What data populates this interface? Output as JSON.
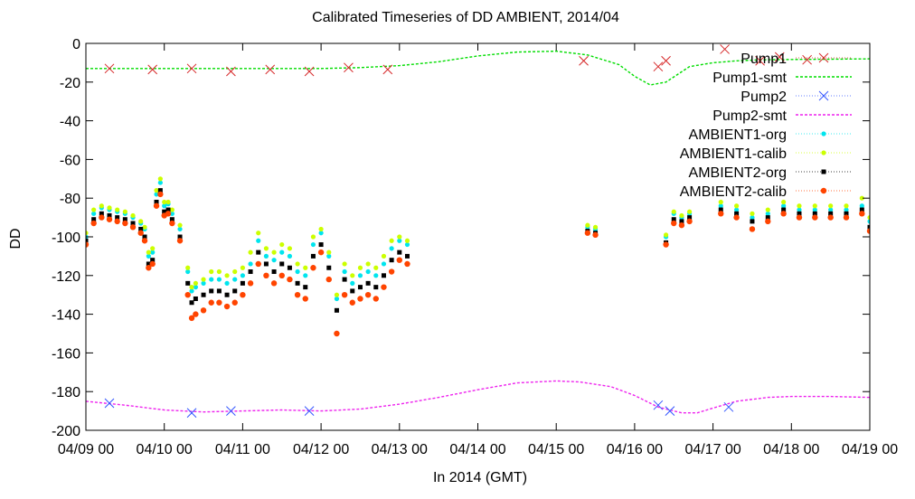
{
  "chart_data": {
    "type": "scatter",
    "title": "Calibrated Timeseries of DD AMBIENT, 2014/04",
    "xlabel": "In 2014 (GMT)",
    "ylabel": "DD",
    "xlim": [
      "2014-04-09 00:00",
      "2014-04-19 00:00"
    ],
    "ylim": [
      -200,
      0
    ],
    "yticks": [
      0,
      -20,
      -40,
      -60,
      -80,
      -100,
      -120,
      -140,
      -160,
      -180,
      -200
    ],
    "xticks": [
      "04/09 00",
      "04/10 00",
      "04/11 00",
      "04/12 00",
      "04/13 00",
      "04/14 00",
      "04/15 00",
      "04/16 00",
      "04/17 00",
      "04/18 00",
      "04/19 00"
    ],
    "legend_position": "top-right",
    "grid": false,
    "series": [
      {
        "name": "Pump1",
        "style": "cross-marker",
        "color": "#d62728",
        "x": [
          0.3,
          0.85,
          1.35,
          1.85,
          2.35,
          2.85,
          3.35,
          3.85,
          6.35,
          7.3,
          7.4,
          8.15,
          8.6,
          8.85,
          9.2
        ],
        "y": [
          -13,
          -13.5,
          -13,
          -14.5,
          -13.5,
          -14.5,
          -12.5,
          -13.5,
          -9,
          -12,
          -9,
          -3,
          -9,
          -7,
          -8.5
        ]
      },
      {
        "name": "Pump1-smt",
        "style": "line",
        "color": "#00dd00",
        "x": [
          0,
          1,
          2,
          3,
          3.5,
          4,
          4.5,
          5,
          5.5,
          6,
          6.4,
          6.8,
          7.0,
          7.2,
          7.4,
          7.7,
          8.0,
          8.3,
          8.6,
          9.0,
          9.5,
          10
        ],
        "y": [
          -13,
          -13,
          -13,
          -13,
          -12.5,
          -11.5,
          -9.5,
          -6.5,
          -4.5,
          -4,
          -6,
          -11,
          -17,
          -21.5,
          -20,
          -12,
          -10,
          -9,
          -8.5,
          -8.3,
          -8.2,
          -8
        ]
      },
      {
        "name": "Pump2",
        "style": "cross-marker",
        "color": "#3355ff",
        "x": [
          0.3,
          1.35,
          1.85,
          2.85,
          7.3,
          7.45,
          8.2
        ],
        "y": [
          -186,
          -191,
          -190,
          -190,
          -187,
          -190,
          -188
        ]
      },
      {
        "name": "Pump2-smt",
        "style": "line",
        "color": "#ee22ee",
        "x": [
          0,
          0.5,
          1,
          1.5,
          2,
          2.5,
          3,
          3.5,
          4,
          4.5,
          5,
          5.5,
          6,
          6.3,
          6.7,
          7.0,
          7.3,
          7.6,
          7.8,
          8.0,
          8.3,
          8.7,
          9.0,
          9.5,
          10
        ],
        "y": [
          -185,
          -187,
          -189.5,
          -190.5,
          -190,
          -189.5,
          -190,
          -189,
          -186.5,
          -183,
          -179,
          -175.5,
          -174.5,
          -175,
          -177.5,
          -182,
          -188,
          -191,
          -191,
          -188.5,
          -185,
          -183,
          -182.5,
          -182.5,
          -183
        ]
      },
      {
        "name": "AMBIENT1-org",
        "style": "small-marker",
        "color": "#00e5ee",
        "x": [
          0,
          0.1,
          0.2,
          0.3,
          0.4,
          0.5,
          0.6,
          0.7,
          0.75,
          0.8,
          0.85,
          0.9,
          0.95,
          1.0,
          1.05,
          1.1,
          1.2,
          1.3,
          1.35,
          1.4,
          1.5,
          1.6,
          1.7,
          1.8,
          1.9,
          2.0,
          2.1,
          2.2,
          2.3,
          2.4,
          2.5,
          2.6,
          2.7,
          2.8,
          2.9,
          3.0,
          3.1,
          3.2,
          3.3,
          3.4,
          3.5,
          3.6,
          3.7,
          3.8,
          3.9,
          4.0,
          4.1,
          6.4,
          6.5,
          7.4,
          7.5,
          7.6,
          7.7,
          8.1,
          8.3,
          8.5,
          8.7,
          8.9,
          9.1,
          9.3,
          9.5,
          9.7,
          9.9,
          10
        ],
        "y": [
          -100,
          -88,
          -85,
          -86,
          -87,
          -88,
          -90,
          -93,
          -96,
          -110,
          -108,
          -78,
          -72,
          -84,
          -83,
          -88,
          -96,
          -118,
          -128,
          -126,
          -124,
          -122,
          -122,
          -124,
          -122,
          -120,
          -114,
          -102,
          -110,
          -112,
          -108,
          -110,
          -118,
          -120,
          -104,
          -98,
          -110,
          -132,
          -118,
          -124,
          -120,
          -118,
          -120,
          -114,
          -106,
          -102,
          -104,
          -95,
          -96,
          -100,
          -88,
          -90,
          -88,
          -84,
          -86,
          -90,
          -88,
          -84,
          -86,
          -86,
          -86,
          -86,
          -84,
          -92
        ]
      },
      {
        "name": "AMBIENT1-calib",
        "style": "small-marker",
        "color": "#ccff00",
        "x": [
          0,
          0.1,
          0.2,
          0.3,
          0.4,
          0.5,
          0.6,
          0.7,
          0.75,
          0.8,
          0.85,
          0.9,
          0.95,
          1.0,
          1.05,
          1.1,
          1.2,
          1.3,
          1.35,
          1.4,
          1.5,
          1.6,
          1.7,
          1.8,
          1.9,
          2.0,
          2.1,
          2.2,
          2.3,
          2.4,
          2.5,
          2.6,
          2.7,
          2.8,
          2.9,
          3.0,
          3.1,
          3.2,
          3.3,
          3.4,
          3.5,
          3.6,
          3.7,
          3.8,
          3.9,
          4.0,
          4.1,
          6.4,
          6.5,
          7.4,
          7.5,
          7.6,
          7.7,
          8.1,
          8.3,
          8.5,
          8.7,
          8.9,
          9.1,
          9.3,
          9.5,
          9.7,
          9.9,
          10
        ],
        "y": [
          -98,
          -86,
          -84,
          -85,
          -86,
          -87,
          -89,
          -92,
          -95,
          -108,
          -106,
          -76,
          -70,
          -82,
          -82,
          -86,
          -94,
          -116,
          -126,
          -124,
          -122,
          -118,
          -118,
          -120,
          -118,
          -116,
          -108,
          -98,
          -106,
          -108,
          -104,
          -106,
          -114,
          -116,
          -100,
          -96,
          -108,
          -130,
          -114,
          -120,
          -116,
          -114,
          -116,
          -110,
          -102,
          -100,
          -102,
          -94,
          -95,
          -99,
          -87,
          -89,
          -87,
          -82,
          -84,
          -88,
          -86,
          -82,
          -84,
          -84,
          -84,
          -84,
          -80,
          -90
        ]
      },
      {
        "name": "AMBIENT2-org",
        "style": "small-square",
        "color": "#000000",
        "x": [
          0,
          0.1,
          0.2,
          0.3,
          0.4,
          0.5,
          0.6,
          0.7,
          0.75,
          0.8,
          0.85,
          0.9,
          0.95,
          1.0,
          1.05,
          1.1,
          1.2,
          1.3,
          1.35,
          1.4,
          1.5,
          1.6,
          1.7,
          1.8,
          1.9,
          2.0,
          2.1,
          2.2,
          2.3,
          2.4,
          2.5,
          2.6,
          2.7,
          2.8,
          2.9,
          3.0,
          3.1,
          3.2,
          3.3,
          3.4,
          3.5,
          3.6,
          3.7,
          3.8,
          3.9,
          4.0,
          4.1,
          6.4,
          6.5,
          7.4,
          7.5,
          7.6,
          7.7,
          8.1,
          8.3,
          8.5,
          8.7,
          8.9,
          9.1,
          9.3,
          9.5,
          9.7,
          9.9,
          10
        ],
        "y": [
          -102,
          -91,
          -88,
          -89,
          -90,
          -91,
          -93,
          -96,
          -100,
          -114,
          -112,
          -82,
          -76,
          -87,
          -86,
          -91,
          -100,
          -124,
          -134,
          -132,
          -130,
          -128,
          -128,
          -130,
          -128,
          -124,
          -118,
          -108,
          -114,
          -118,
          -114,
          -116,
          -124,
          -126,
          -110,
          -104,
          -116,
          -138,
          -122,
          -128,
          -126,
          -124,
          -126,
          -120,
          -112,
          -108,
          -110,
          -97,
          -98,
          -103,
          -91,
          -92,
          -90,
          -86,
          -88,
          -92,
          -90,
          -86,
          -88,
          -88,
          -88,
          -88,
          -86,
          -95
        ]
      },
      {
        "name": "AMBIENT2-calib",
        "style": "small-circle",
        "color": "#ff4400",
        "x": [
          0,
          0.1,
          0.2,
          0.3,
          0.4,
          0.5,
          0.6,
          0.7,
          0.75,
          0.8,
          0.85,
          0.9,
          0.95,
          1.0,
          1.05,
          1.1,
          1.2,
          1.3,
          1.35,
          1.4,
          1.5,
          1.6,
          1.7,
          1.8,
          1.9,
          2.0,
          2.1,
          2.2,
          2.3,
          2.4,
          2.5,
          2.6,
          2.7,
          2.8,
          2.9,
          3.0,
          3.1,
          3.2,
          3.3,
          3.4,
          3.5,
          3.6,
          3.7,
          3.8,
          3.9,
          4.0,
          4.1,
          6.4,
          6.5,
          7.4,
          7.5,
          7.6,
          7.7,
          8.1,
          8.3,
          8.5,
          8.7,
          8.9,
          9.1,
          9.3,
          9.5,
          9.7,
          9.9,
          10
        ],
        "y": [
          -104,
          -93,
          -90,
          -91,
          -92,
          -93,
          -95,
          -98,
          -102,
          -116,
          -114,
          -84,
          -78,
          -89,
          -88,
          -93,
          -102,
          -130,
          -142,
          -140,
          -138,
          -134,
          -134,
          -136,
          -134,
          -130,
          -124,
          -114,
          -120,
          -124,
          -120,
          -122,
          -130,
          -132,
          -116,
          -108,
          -122,
          -150,
          -130,
          -134,
          -132,
          -130,
          -132,
          -126,
          -118,
          -112,
          -114,
          -98,
          -99,
          -104,
          -93,
          -94,
          -92,
          -88,
          -90,
          -96,
          -92,
          -88,
          -90,
          -90,
          -90,
          -90,
          -88,
          -97
        ]
      }
    ]
  }
}
